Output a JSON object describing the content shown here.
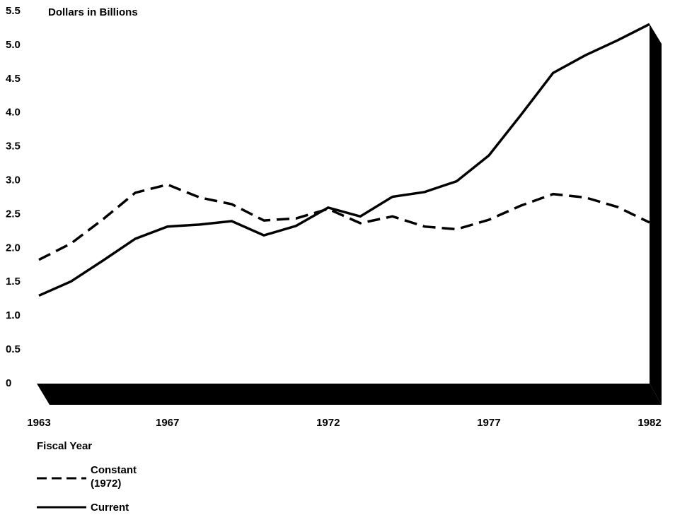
{
  "chart_data": {
    "type": "line",
    "y_label": "Dollars in Billions",
    "x_label": "Fiscal Year",
    "x": [
      1963,
      1964,
      1965,
      1966,
      1967,
      1968,
      1969,
      1970,
      1971,
      1972,
      1973,
      1974,
      1975,
      1976,
      1977,
      1978,
      1979,
      1980,
      1981,
      1982
    ],
    "series": [
      {
        "name": "Constant (1972)",
        "color": "#000000",
        "line_style": "dashed",
        "values": [
          1.83,
          2.07,
          2.43,
          2.82,
          2.94,
          2.75,
          2.65,
          2.41,
          2.44,
          2.58,
          2.37,
          2.47,
          2.32,
          2.28,
          2.42,
          2.63,
          2.8,
          2.75,
          2.61,
          2.38
        ]
      },
      {
        "name": "Current",
        "color": "#000000",
        "line_style": "solid",
        "values": [
          1.3,
          1.51,
          1.82,
          2.14,
          2.32,
          2.35,
          2.4,
          2.19,
          2.33,
          2.6,
          2.47,
          2.76,
          2.83,
          2.99,
          3.37,
          3.97,
          4.59,
          4.85,
          5.07,
          5.31
        ]
      }
    ],
    "xlim": [
      1963,
      1982
    ],
    "xticks": [
      1963,
      1967,
      1972,
      1977,
      1982
    ],
    "ylim": [
      0,
      5.5
    ],
    "yticks": [
      0,
      {
        "value": 0.5,
        "label": "0.5"
      },
      {
        "value": 1,
        "label": "1.0"
      },
      1.5,
      {
        "value": 2,
        "label": "2.0"
      },
      2.5,
      {
        "value": 3,
        "label": "3.0"
      },
      3.5,
      {
        "value": 4,
        "label": "4.0"
      },
      4.5,
      {
        "value": 5,
        "label": "5.0"
      },
      5.5
    ],
    "grid": false
  }
}
